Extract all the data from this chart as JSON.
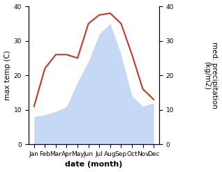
{
  "months": [
    "Jan",
    "Feb",
    "Mar",
    "Apr",
    "May",
    "Jun",
    "Jul",
    "Aug",
    "Sep",
    "Oct",
    "Nov",
    "Dec"
  ],
  "max_temp": [
    11,
    22,
    26,
    26,
    25,
    35,
    37.5,
    38,
    35,
    26,
    16,
    13
  ],
  "precipitation": [
    8,
    8.5,
    9.5,
    11,
    18,
    24,
    32,
    35,
    26,
    14,
    11,
    12
  ],
  "temp_color": "#c0392b",
  "precip_fill_color": "#c5d8f5",
  "ylim": [
    0,
    40
  ],
  "yticks": [
    0,
    10,
    20,
    30,
    40
  ],
  "xlabel": "date (month)",
  "ylabel_left": "max temp (C)",
  "ylabel_right": "med. precipitation\n(kg/m2)",
  "tick_fontsize": 6.5,
  "label_fontsize": 7.5,
  "xlabel_fontsize": 8
}
